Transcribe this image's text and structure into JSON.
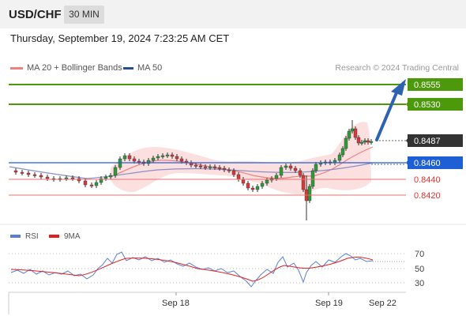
{
  "header": {
    "symbol": "USD/CHF",
    "timeframe": "30 MIN"
  },
  "datetime": "Thursday, September 19, 2024 7:23:25 AM CET",
  "legend": {
    "ma20": {
      "label": "MA 20 + Bollinger Bands",
      "color": "#f08080"
    },
    "ma50": {
      "label": "MA 50",
      "color": "#2a4d8f"
    }
  },
  "credit": "Research © 2024 Trading Central",
  "levels": [
    {
      "value": "0.8555",
      "kind": "target",
      "color": "#4c9a0c"
    },
    {
      "value": "0.8530",
      "kind": "target",
      "color": "#4c9a0c"
    },
    {
      "value": "0.8487",
      "kind": "current",
      "color": "#333333"
    },
    {
      "value": "0.8460",
      "kind": "pivot",
      "color": "#1f5fd6"
    },
    {
      "value": "0.8440",
      "kind": "support",
      "color": "#e03030"
    },
    {
      "value": "0.8420",
      "kind": "support",
      "color": "#e03030"
    }
  ],
  "rsi_panel": {
    "legend_rsi": "RSI",
    "legend_9ma": "9MA",
    "rsi_color": "#5b7fd6",
    "ma_color": "#e02020",
    "y_labels": [
      "70",
      "50",
      "30"
    ]
  },
  "x_axis": [
    "Sep 18",
    "Sep 19",
    "Sep 22"
  ]
}
